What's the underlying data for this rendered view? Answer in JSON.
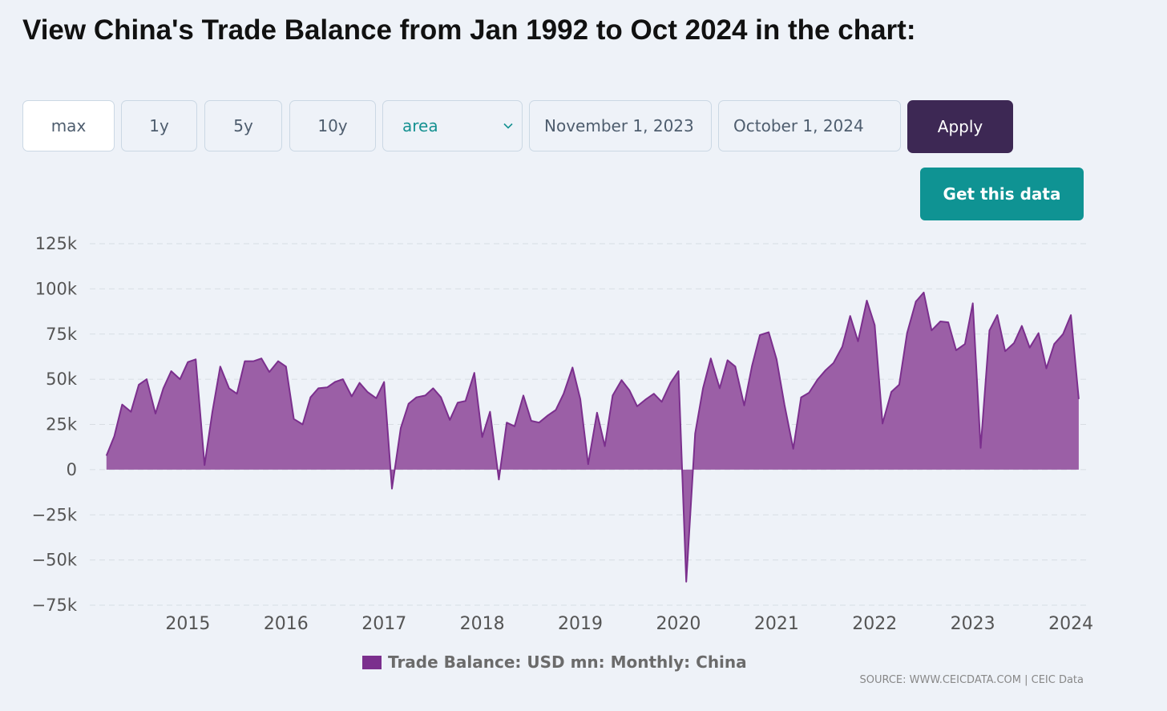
{
  "header": {
    "title": "View China's Trade Balance from Jan 1992 to Oct 2024 in the chart:"
  },
  "controls": {
    "ranges": [
      {
        "label": "max",
        "active": true
      },
      {
        "label": "1y",
        "active": false
      },
      {
        "label": "5y",
        "active": false
      },
      {
        "label": "10y",
        "active": false
      }
    ],
    "chart_type": "area",
    "start_date": "November 1, 2023",
    "end_date": "October 1, 2024",
    "apply_label": "Apply",
    "get_data_label": "Get this data"
  },
  "colors": {
    "series_fill": "#9b5fa6",
    "series_line": "#7b2f8d",
    "apply_button": "#3d2854",
    "get_data_button": "#0f9393",
    "select_text": "#159191"
  },
  "icons": {
    "dropdown": "chevron-down-icon"
  },
  "source_text": "SOURCE: WWW.CEICDATA.COM | CEIC Data",
  "chart_data": {
    "type": "area",
    "title": "",
    "xlabel": "",
    "ylabel": "",
    "ylim": [
      -75000,
      125000
    ],
    "yticks": [
      125000,
      100000,
      75000,
      50000,
      25000,
      0,
      -25000,
      -50000,
      -75000
    ],
    "ytick_labels": [
      "125k",
      "100k",
      "75k",
      "50k",
      "25k",
      "0",
      "−25k",
      "−50k",
      "−75k"
    ],
    "xticks": [
      2015,
      2016,
      2017,
      2018,
      2019,
      2020,
      2021,
      2022,
      2023,
      2024
    ],
    "xlim": [
      2014.0,
      2024.13
    ],
    "grid": true,
    "legend": "bottom",
    "series": [
      {
        "name": "Trade Balance: USD mn: Monthly: China",
        "x": [
          2014.17,
          2014.25,
          2014.33,
          2014.42,
          2014.5,
          2014.58,
          2014.67,
          2014.75,
          2014.83,
          2014.92,
          2015.0,
          2015.08,
          2015.17,
          2015.25,
          2015.33,
          2015.42,
          2015.5,
          2015.58,
          2015.67,
          2015.75,
          2015.83,
          2015.92,
          2016.0,
          2016.08,
          2016.17,
          2016.25,
          2016.33,
          2016.42,
          2016.5,
          2016.58,
          2016.67,
          2016.75,
          2016.83,
          2016.92,
          2017.0,
          2017.08,
          2017.17,
          2017.25,
          2017.33,
          2017.42,
          2017.5,
          2017.58,
          2017.67,
          2017.75,
          2017.83,
          2017.92,
          2018.0,
          2018.08,
          2018.17,
          2018.25,
          2018.33,
          2018.42,
          2018.5,
          2018.58,
          2018.67,
          2018.75,
          2018.83,
          2018.92,
          2019.0,
          2019.08,
          2019.17,
          2019.25,
          2019.33,
          2019.42,
          2019.5,
          2019.58,
          2019.67,
          2019.75,
          2019.83,
          2019.92,
          2020.0,
          2020.08,
          2020.17,
          2020.25,
          2020.33,
          2020.42,
          2020.5,
          2020.58,
          2020.67,
          2020.75,
          2020.83,
          2020.92,
          2021.0,
          2021.08,
          2021.17,
          2021.25,
          2021.33,
          2021.42,
          2021.5,
          2021.58,
          2021.67,
          2021.75,
          2021.83,
          2021.92,
          2022.0,
          2022.08,
          2022.17,
          2022.25,
          2022.33,
          2022.42,
          2022.5,
          2022.58,
          2022.67,
          2022.75,
          2022.83,
          2022.92,
          2023.0,
          2023.08,
          2023.17,
          2023.25,
          2023.33,
          2023.42,
          2023.5,
          2023.58,
          2023.67,
          2023.75,
          2023.83,
          2023.92,
          2024.0,
          2024.08
        ],
        "values": [
          7700,
          18500,
          36000,
          32000,
          47000,
          50000,
          31000,
          45000,
          54500,
          50000,
          59500,
          61000,
          2500,
          32000,
          57000,
          45000,
          42000,
          60000,
          60000,
          61500,
          54000,
          60000,
          57000,
          28000,
          25000,
          40000,
          45000,
          45500,
          48500,
          50000,
          40500,
          48000,
          43000,
          39500,
          48500,
          -10500,
          23000,
          36500,
          40000,
          41000,
          45000,
          40000,
          27500,
          37000,
          38000,
          53500,
          18000,
          32000,
          -5500,
          26000,
          24000,
          41000,
          27000,
          26000,
          30000,
          33000,
          42000,
          56500,
          39000,
          3000,
          31500,
          13000,
          41000,
          49500,
          44000,
          35000,
          39000,
          42000,
          37500,
          48000,
          54500,
          -62000,
          20000,
          45000,
          61500,
          45000,
          60500,
          57000,
          35500,
          57500,
          74500,
          76000,
          61000,
          36000,
          11500,
          40000,
          42500,
          50000,
          55000,
          59000,
          68000,
          85000,
          71000,
          93500,
          80000,
          25500,
          43000,
          47000,
          75500,
          93000,
          98000,
          77000,
          82000,
          81500,
          66000,
          69500,
          92000,
          12000,
          77000,
          85500,
          65500,
          70000,
          79500,
          67500,
          75500,
          56000,
          69500,
          75000,
          85500,
          39000
        ]
      }
    ]
  }
}
